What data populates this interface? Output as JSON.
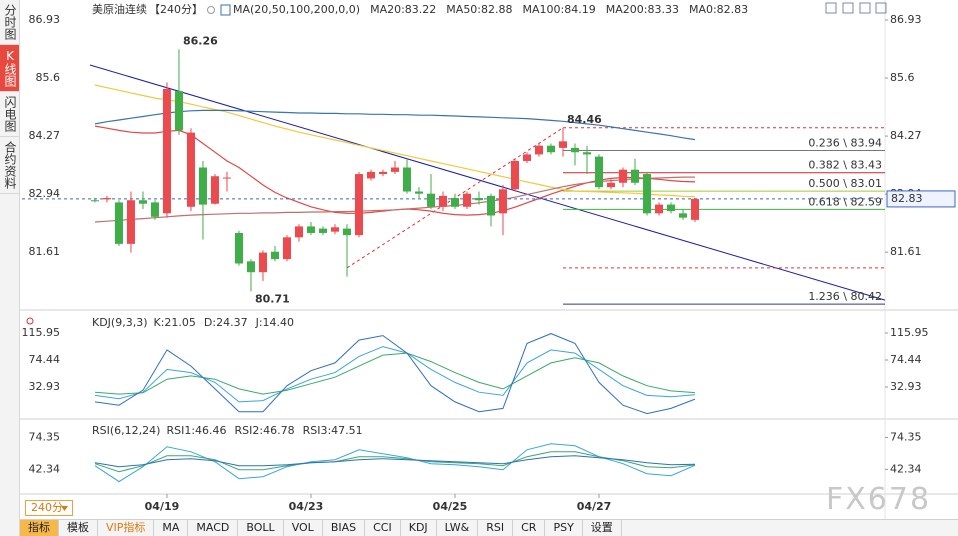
{
  "sidebar": [
    "分时图",
    "K线图",
    "闪电图",
    "合约资料"
  ],
  "sidebar_active": 1,
  "header": {
    "symbol": "美原油连续",
    "period": "【240分】"
  },
  "period_button": "240分",
  "toolbar": [
    "指标",
    "模板",
    "VIP指标",
    "MA",
    "MACD",
    "BOLL",
    "VOL",
    "BIAS",
    "CCI",
    "KDJ",
    "LW&",
    "RSI",
    "CR",
    "PSY",
    "设置"
  ],
  "toolbar_active": 0,
  "watermark": "FX678",
  "chart_data": [
    {
      "type": "candlestick",
      "legend_title": "MA(20,50,100,200,0,0)",
      "categories": [
        null,
        null,
        null,
        null,
        null,
        null,
        "04/19",
        null,
        null,
        null,
        null,
        null,
        null,
        null,
        null,
        null,
        null,
        null,
        "04/23",
        null,
        null,
        null,
        null,
        null,
        null,
        null,
        null,
        null,
        null,
        null,
        "04/25",
        null,
        null,
        null,
        null,
        null,
        null,
        null,
        null,
        null,
        null,
        null,
        "04/27",
        null,
        null,
        null,
        null,
        null,
        null,
        null,
        null
      ],
      "open": [
        82.8,
        82.82,
        82.75,
        81.8,
        82.8,
        82.75,
        82.5,
        85.3,
        82.65,
        83.55,
        82.72,
        83.3,
        82.05,
        81.4,
        81.15,
        81.62,
        81.45,
        81.95,
        82.2,
        82.15,
        82.08,
        82.15,
        82.0,
        83.3,
        83.4,
        83.45,
        83.55,
        83.0,
        82.95,
        82.65,
        82.85,
        82.65,
        82.85,
        82.9,
        82.5,
        83.05,
        83.7,
        83.85,
        84.05,
        84.0,
        84.0,
        83.9,
        83.8,
        83.1,
        83.2,
        83.5,
        83.4,
        82.5,
        82.7,
        82.5,
        82.35
      ],
      "high": [
        82.85,
        82.9,
        82.8,
        83.0,
        83.0,
        82.8,
        85.5,
        86.26,
        84.45,
        83.7,
        83.4,
        83.45,
        82.1,
        81.45,
        81.65,
        81.75,
        82.0,
        82.25,
        82.3,
        82.2,
        82.25,
        82.25,
        83.45,
        83.5,
        83.5,
        83.7,
        83.75,
        83.1,
        83.4,
        83.0,
        82.95,
        83.0,
        83.0,
        82.95,
        83.15,
        83.75,
        83.9,
        84.1,
        84.1,
        84.46,
        84.1,
        84.05,
        83.85,
        83.3,
        83.55,
        83.75,
        83.45,
        82.75,
        82.75,
        82.6,
        82.85
      ],
      "low": [
        82.75,
        82.75,
        81.75,
        81.6,
        82.6,
        82.35,
        82.4,
        84.3,
        82.55,
        81.9,
        82.7,
        83.0,
        81.3,
        80.71,
        80.95,
        81.4,
        81.4,
        81.85,
        82.0,
        82.0,
        82.02,
        81.05,
        81.95,
        83.25,
        83.35,
        83.4,
        82.95,
        82.85,
        82.6,
        82.55,
        82.6,
        82.6,
        82.7,
        82.2,
        82.0,
        83.0,
        83.65,
        83.8,
        83.85,
        83.8,
        83.6,
        83.4,
        83.05,
        83.05,
        83.1,
        83.15,
        82.45,
        82.45,
        82.5,
        82.35,
        82.3
      ],
      "close": [
        82.78,
        82.85,
        81.8,
        82.8,
        82.72,
        82.42,
        85.35,
        84.4,
        84.35,
        82.7,
        83.35,
        83.32,
        81.35,
        81.15,
        81.6,
        81.45,
        81.95,
        82.2,
        82.05,
        82.05,
        82.18,
        82.0,
        83.4,
        83.45,
        83.45,
        83.55,
        83.0,
        82.95,
        82.65,
        82.9,
        82.65,
        82.95,
        82.8,
        82.45,
        83.05,
        83.7,
        83.85,
        84.05,
        83.9,
        84.15,
        83.9,
        83.85,
        83.1,
        83.2,
        83.5,
        83.2,
        82.5,
        82.7,
        82.55,
        82.4,
        82.83
      ],
      "up_color": "#eb4a4f",
      "down_color": "#3fae49",
      "series": [
        {
          "name": "MA20:83.22",
          "color": "#e04848",
          "values": [
            84.5,
            84.45,
            84.4,
            84.36,
            84.34,
            84.34,
            84.38,
            84.4,
            84.3,
            84.1,
            83.9,
            83.7,
            83.55,
            83.35,
            83.15,
            82.98,
            82.85,
            82.75,
            82.65,
            82.58,
            82.52,
            82.5,
            82.5,
            82.52,
            82.55,
            82.58,
            82.6,
            82.58,
            82.55,
            82.5,
            82.47,
            82.46,
            82.47,
            82.5,
            82.56,
            82.64,
            82.74,
            82.84,
            82.94,
            83.03,
            83.12,
            83.2,
            83.26,
            83.3,
            83.32,
            83.32,
            83.3,
            83.28,
            83.25,
            83.23,
            83.22
          ]
        },
        {
          "name": "MA50:82.88",
          "color": "#f0c93a",
          "values": [
            85.44,
            85.38,
            85.32,
            85.26,
            85.2,
            85.14,
            85.1,
            85.06,
            85.0,
            84.94,
            84.88,
            84.82,
            84.74,
            84.66,
            84.58,
            84.5,
            84.43,
            84.36,
            84.3,
            84.24,
            84.18,
            84.12,
            84.06,
            84.0,
            83.94,
            83.88,
            83.82,
            83.76,
            83.7,
            83.64,
            83.58,
            83.52,
            83.46,
            83.4,
            83.34,
            83.28,
            83.22,
            83.16,
            83.1,
            83.05,
            83.01,
            83.0,
            82.99,
            82.98,
            82.97,
            82.96,
            82.94,
            82.92,
            82.91,
            82.89,
            82.88
          ]
        },
        {
          "name": "MA100:84.19",
          "color": "#3a72b0",
          "values": [
            84.55,
            84.6,
            84.64,
            84.68,
            84.72,
            84.76,
            84.8,
            84.83,
            84.85,
            84.86,
            84.86,
            84.86,
            84.85,
            84.84,
            84.83,
            84.82,
            84.81,
            84.8,
            84.8,
            84.79,
            84.79,
            84.78,
            84.78,
            84.77,
            84.77,
            84.76,
            84.76,
            84.75,
            84.75,
            84.74,
            84.73,
            84.72,
            84.71,
            84.7,
            84.69,
            84.68,
            84.67,
            84.65,
            84.63,
            84.61,
            84.58,
            84.55,
            84.52,
            84.48,
            84.44,
            84.4,
            84.36,
            84.32,
            84.28,
            84.23,
            84.19
          ]
        },
        {
          "name": "MA200:83.33",
          "color": "#c0706a",
          "values": [
            82.3,
            82.32,
            82.34,
            82.36,
            82.38,
            82.4,
            82.42,
            82.44,
            82.46,
            82.47,
            82.48,
            82.49,
            82.5,
            82.5,
            82.51,
            82.51,
            82.52,
            82.52,
            82.53,
            82.53,
            82.54,
            82.54,
            82.55,
            82.56,
            82.57,
            82.58,
            82.6,
            82.62,
            82.64,
            82.66,
            82.68,
            82.71,
            82.74,
            82.78,
            82.82,
            82.87,
            82.93,
            82.99,
            83.05,
            83.11,
            83.16,
            83.2,
            83.23,
            83.25,
            83.27,
            83.29,
            83.3,
            83.31,
            83.32,
            83.33,
            83.33
          ]
        }
      ],
      "price_line": {
        "name": "MA0:82.83",
        "value": 82.83,
        "color": "#3c64c8"
      },
      "fib_levels": [
        {
          "label": "0.236 \\ 83.94",
          "value": 83.94,
          "color": "#777777"
        },
        {
          "label": "0.382 \\ 83.43",
          "value": 83.43,
          "color": "#c8282c"
        },
        {
          "label": "0.500 \\ 83.01",
          "value": 83.01,
          "color": "#9ccc2c"
        },
        {
          "label": "0.618 \\ 82.59",
          "value": 82.59,
          "color": "#3cb43c"
        },
        {
          "label": "1.236 \\ 80.42",
          "value": 80.42,
          "color": "#2a3a8a"
        }
      ],
      "fib_bounds": [
        81.25,
        84.46
      ],
      "fib_x": [
        21,
        39
      ],
      "fib_color": "#e0303a",
      "trendline": {
        "x": [
          -0.42,
          65.83
        ],
        "y": [
          85.9,
          80.51
        ],
        "color": "#1c1caa"
      },
      "annotations": [
        {
          "index": 7,
          "value": 86.26,
          "position": "above",
          "color": "#e03030"
        },
        {
          "index": 13,
          "value": 80.71,
          "position": "below",
          "color": "#2a9a3a"
        },
        {
          "index": 39,
          "value": 84.46,
          "position": "above",
          "color": "#e03030"
        }
      ],
      "xlim": [
        -6.08,
        65.83
      ],
      "ylim": [
        80.33,
        87.16
      ],
      "yticks": [
        86.93,
        85.6,
        84.27,
        82.94,
        81.61
      ]
    },
    {
      "type": "line",
      "legend_title": "KDJ(9,3,3)",
      "x": [
        0,
        2,
        4,
        6,
        8,
        10,
        12,
        14,
        16,
        18,
        20,
        22,
        24,
        26,
        28,
        30,
        32,
        34,
        36,
        38,
        40,
        42,
        44,
        46,
        48,
        50
      ],
      "series": [
        {
          "name": "K:21.05",
          "color": "#39a6dc",
          "values": [
            20,
            15,
            25,
            60,
            55,
            40,
            10,
            12,
            30,
            45,
            55,
            80,
            95,
            85,
            60,
            40,
            25,
            20,
            70,
            90,
            85,
            60,
            35,
            20,
            18,
            21.05
          ]
        },
        {
          "name": "D:24.37",
          "color": "#3aaa6a",
          "values": [
            25,
            22,
            24,
            45,
            50,
            45,
            30,
            22,
            28,
            38,
            48,
            65,
            82,
            85,
            72,
            55,
            40,
            30,
            50,
            70,
            78,
            70,
            50,
            35,
            27,
            24.37
          ]
        },
        {
          "name": "J:14.40",
          "color": "#2f6fbf",
          "values": [
            10,
            5,
            28,
            90,
            65,
            30,
            -5,
            -5,
            35,
            58,
            70,
            105,
            112,
            85,
            35,
            10,
            -5,
            0,
            100,
            115,
            100,
            40,
            5,
            -8,
            0,
            14.4
          ]
        }
      ],
      "ylim": [
        -14.7,
        148.2
      ],
      "yticks": [
        115.95,
        74.44,
        32.93
      ]
    },
    {
      "type": "line",
      "legend_title": "RSI(6,12,24)",
      "x": [
        0,
        2,
        4,
        6,
        8,
        10,
        12,
        14,
        16,
        18,
        20,
        22,
        24,
        26,
        28,
        30,
        32,
        34,
        36,
        38,
        40,
        42,
        44,
        46,
        48,
        50
      ],
      "series": [
        {
          "name": "RSI1:46.46",
          "color": "#39a6dc",
          "values": [
            46,
            30,
            45,
            65,
            60,
            50,
            33,
            35,
            45,
            50,
            52,
            62,
            58,
            54,
            48,
            47,
            45,
            42,
            62,
            68,
            66,
            55,
            48,
            38,
            36,
            46.46
          ]
        },
        {
          "name": "RSI2:46.78",
          "color": "#3aaa6a",
          "values": [
            48,
            40,
            46,
            56,
            56,
            52,
            42,
            42,
            46,
            49,
            50,
            55,
            55,
            53,
            50,
            49,
            48,
            46,
            55,
            60,
            60,
            55,
            51,
            45,
            44,
            46.78
          ]
        },
        {
          "name": "RSI3:47.51",
          "color": "#2f6fbf",
          "values": [
            49,
            45,
            47,
            52,
            53,
            51,
            46,
            46,
            47,
            49,
            50,
            52,
            53,
            52,
            51,
            50,
            49,
            48,
            52,
            55,
            56,
            54,
            52,
            49,
            47,
            47.51
          ]
        }
      ],
      "ylim": [
        19.6,
        91.9
      ],
      "yticks": [
        74.35,
        42.34
      ]
    }
  ]
}
